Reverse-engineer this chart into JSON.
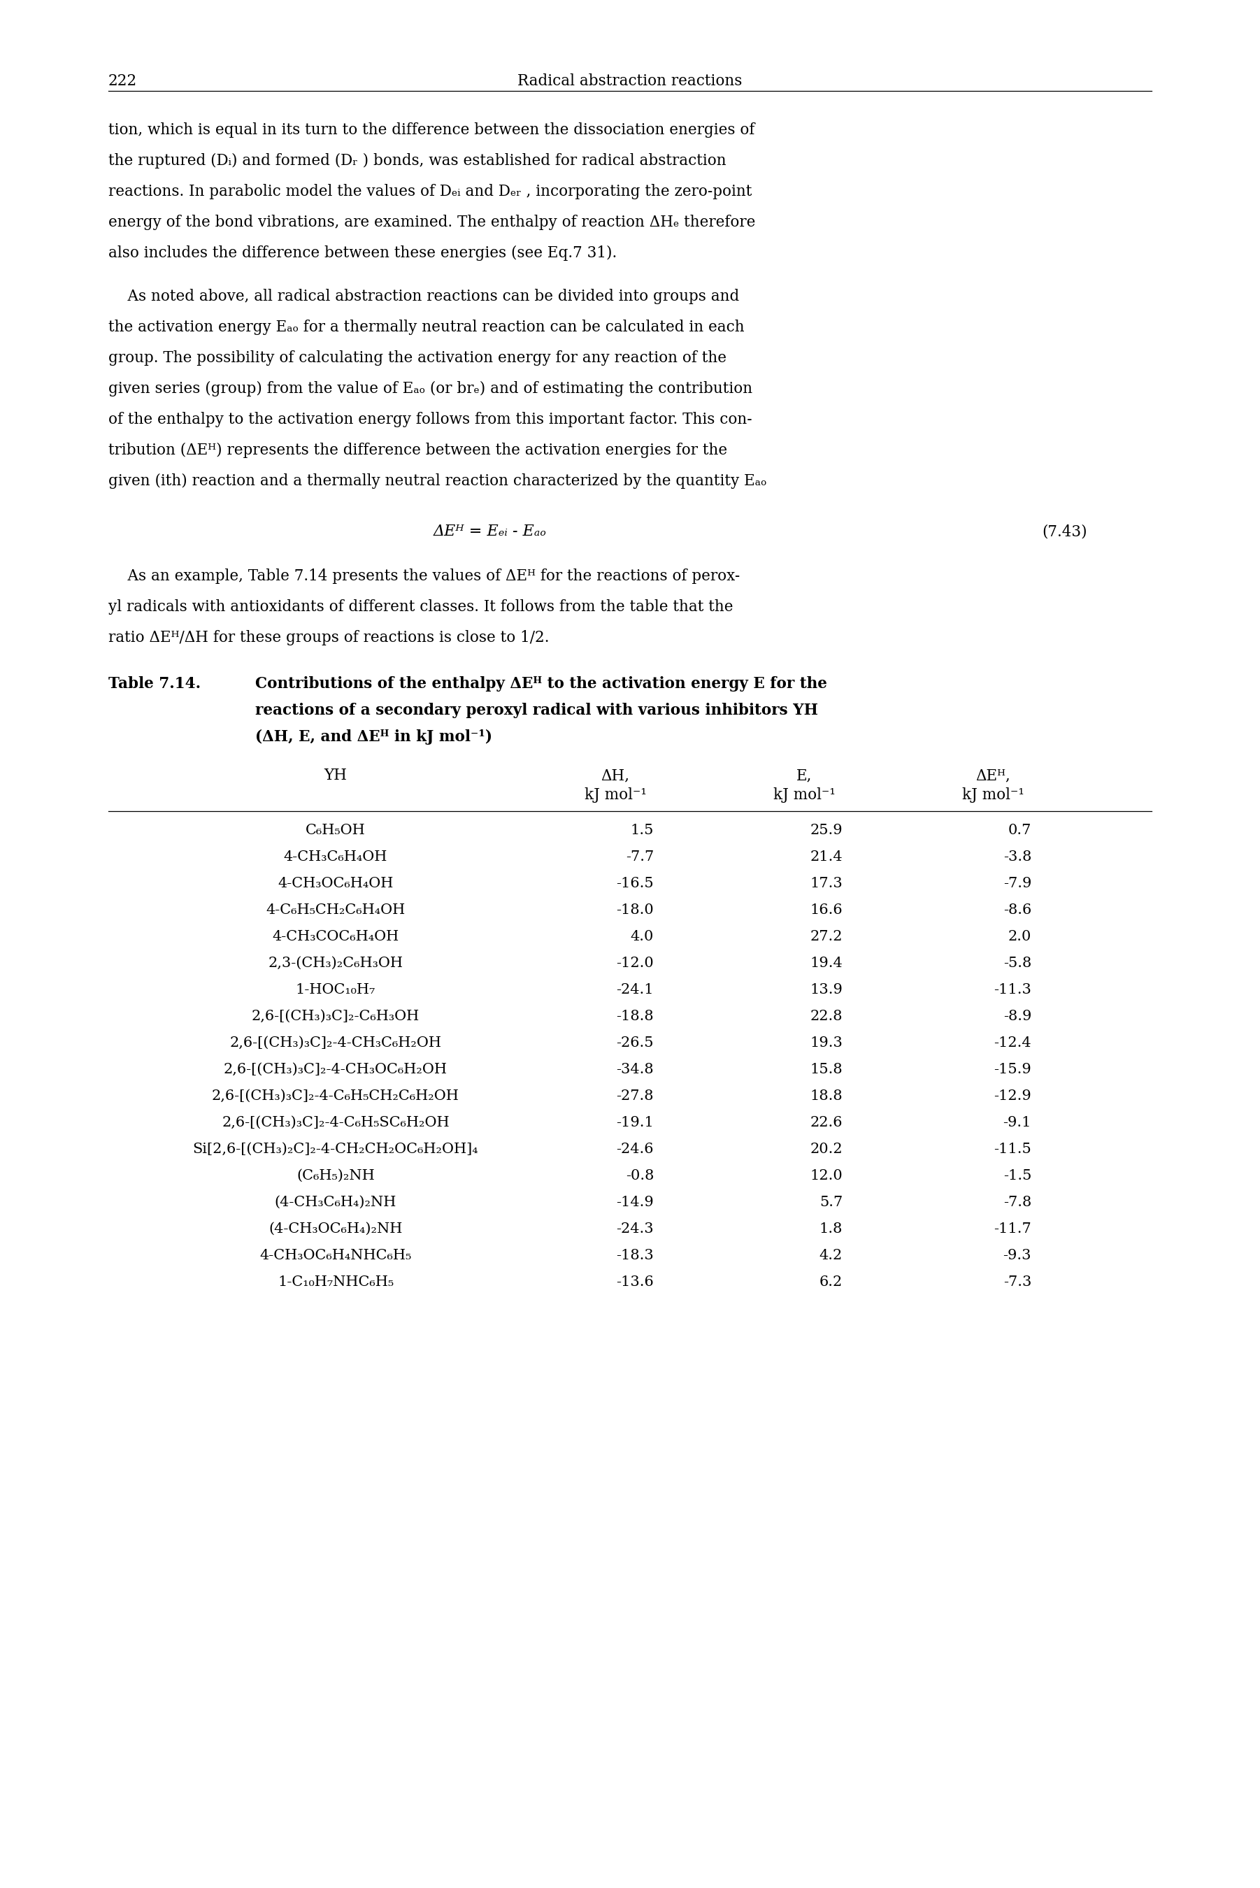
{
  "page_number": "222",
  "header_title": "Radical abstraction reactions",
  "p1_lines": [
    "tion, which is equal in its turn to the difference between the dissociation energies of",
    "the ruptured (Dᵢ) and formed (Dᵣ ) bonds, was established for radical abstraction",
    "reactions. In parabolic model the values of Dₑᵢ and Dₑᵣ , incorporating the zero-point",
    "energy of the bond vibrations, are examined. The enthalpy of reaction ΔHₑ therefore",
    "also includes the difference between these energies (see Eq.7 31)."
  ],
  "p2_lines": [
    "    As noted above, all radical abstraction reactions can be divided into groups and",
    "the activation energy Eₐₒ for a thermally neutral reaction can be calculated in each",
    "group. The possibility of calculating the activation energy for any reaction of the",
    "given series (group) from the value of Eₐₒ (or brₑ) and of estimating the contribution",
    "of the enthalpy to the activation energy follows from this important factor. This con-",
    "tribution (ΔEᴴ) represents the difference between the activation energies for the",
    "given (ith) reaction and a thermally neutral reaction characterized by the quantity Eₐₒ"
  ],
  "equation_lhs": "ΔEᴴ = Eₑᵢ - Eₐₒ",
  "equation_number": "(7.43)",
  "p3_lines": [
    "    As an example, Table 7.14 presents the values of ΔEᴴ for the reactions of perox-",
    "yl radicals with antioxidants of different classes. It follows from the table that the",
    "ratio ΔEᴴ/ΔH for these groups of reactions is close to 1/2."
  ],
  "cap_label": "Table 7.14.",
  "cap_line1": "Contributions of the enthalpy ΔEᴴ to the activation energy E for the",
  "cap_line2": "reactions of a secondary peroxyl radical with various inhibitors YH",
  "cap_line3": "(ΔH, E, and ΔEᴴ in kJ mol⁻¹)",
  "col_yh": "YH",
  "col_dh1": "ΔH,",
  "col_dh2": "kJ mol⁻¹",
  "col_e1": "E,",
  "col_e2": "kJ mol⁻¹",
  "col_deh1": "ΔEᴴ,",
  "col_deh2": "kJ mol⁻¹",
  "rows": [
    [
      "C₆H₅OH",
      "1.5",
      "25.9",
      "0.7"
    ],
    [
      "4-CH₃C₆H₄OH",
      "-7.7",
      "21.4",
      "-3.8"
    ],
    [
      "4-CH₃OC₆H₄OH",
      "-16.5",
      "17.3",
      "-7.9"
    ],
    [
      "4-C₆H₅CH₂C₆H₄OH",
      "-18.0",
      "16.6",
      "-8.6"
    ],
    [
      "4-CH₃COC₆H₄OH",
      "4.0",
      "27.2",
      "2.0"
    ],
    [
      "2,3-(CH₃)₂C₆H₃OH",
      "-12.0",
      "19.4",
      "-5.8"
    ],
    [
      "1-HOC₁₀H₇",
      "-24.1",
      "13.9",
      "-11.3"
    ],
    [
      "2,6-[(CH₃)₃C]₂-C₆H₃OH",
      "-18.8",
      "22.8",
      "-8.9"
    ],
    [
      "2,6-[(CH₃)₃C]₂-4-CH₃C₆H₂OH",
      "-26.5",
      "19.3",
      "-12.4"
    ],
    [
      "2,6-[(CH₃)₃C]₂-4-CH₃OC₆H₂OH",
      "-34.8",
      "15.8",
      "-15.9"
    ],
    [
      "2,6-[(CH₃)₃C]₂-4-C₆H₅CH₂C₆H₂OH",
      "-27.8",
      "18.8",
      "-12.9"
    ],
    [
      "2,6-[(CH₃)₃C]₂-4-C₆H₅SC₆H₂OH",
      "-19.1",
      "22.6",
      "-9.1"
    ],
    [
      "Si[2,6-[(CH₃)₂C]₂-4-CH₂CH₂OC₆H₂OH]₄",
      "-24.6",
      "20.2",
      "-11.5"
    ],
    [
      "(C₆H₅)₂NH",
      "-0.8",
      "12.0",
      "-1.5"
    ],
    [
      "(4-CH₃C₆H₄)₂NH",
      "-14.9",
      "5.7",
      "-7.8"
    ],
    [
      "(4-CH₃OC₆H₄)₂NH",
      "-24.3",
      "1.8",
      "-11.7"
    ],
    [
      "4-CH₃OC₆H₄NHC₆H₅",
      "-18.3",
      "4.2",
      "-9.3"
    ],
    [
      "1-C₁₀H₇NHC₆H₅",
      "-13.6",
      "6.2",
      "-7.3"
    ]
  ],
  "bg": "#ffffff"
}
